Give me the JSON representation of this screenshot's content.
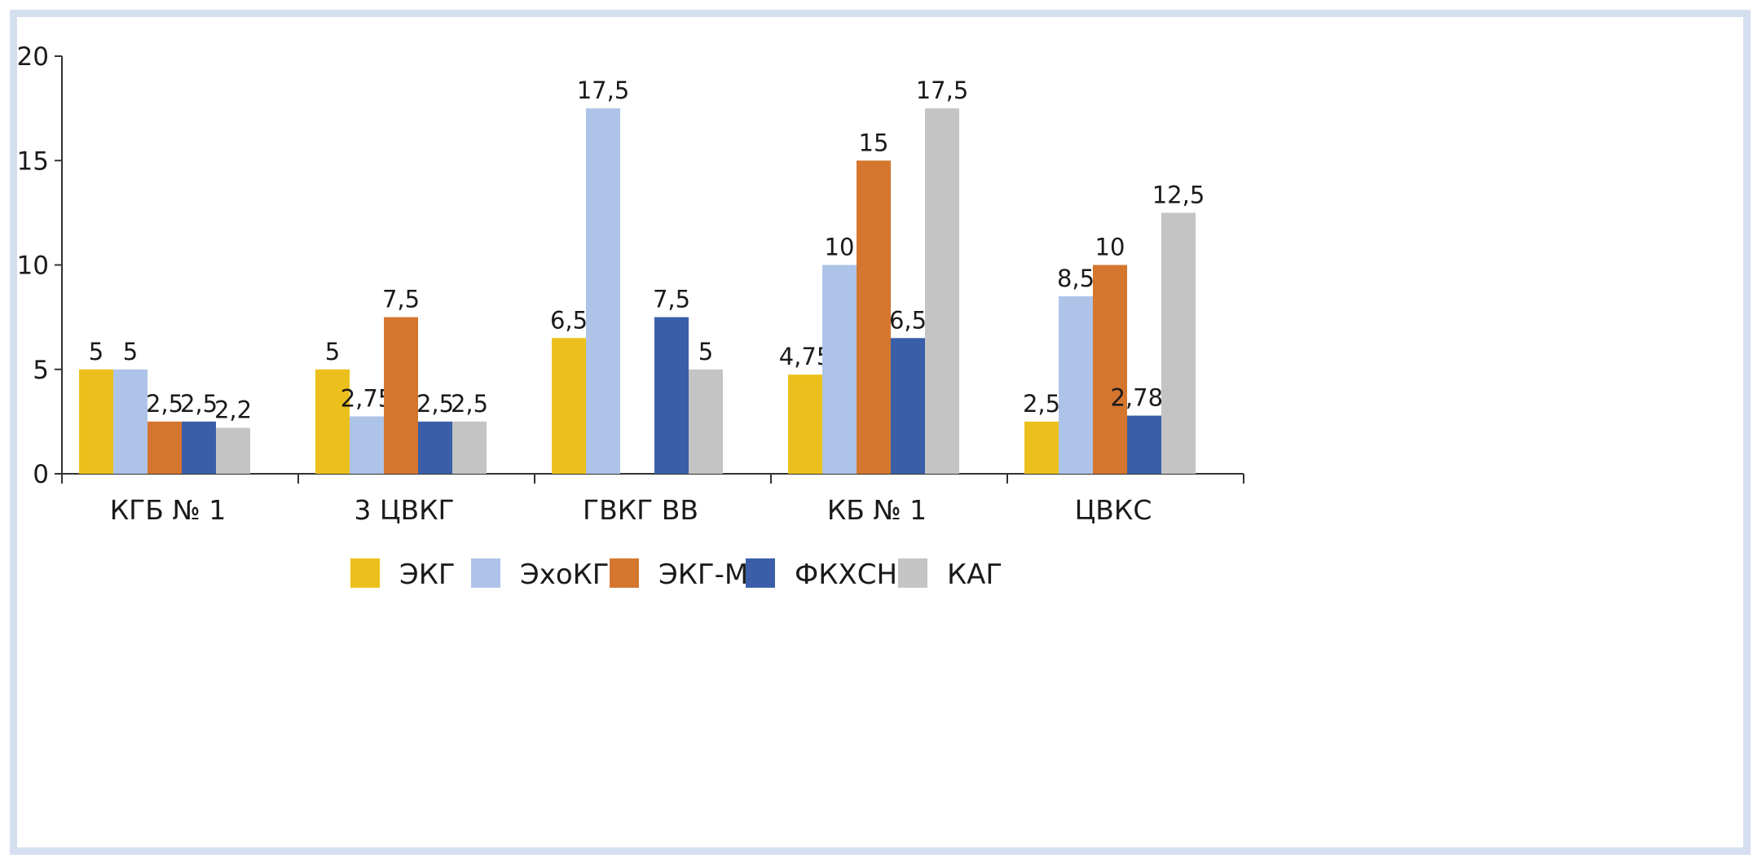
{
  "chart_data": {
    "type": "bar",
    "categories": [
      "КГБ № 1",
      "3 ЦВКГ",
      "ГВКГ ВВ",
      "КБ № 1",
      "ЦВКС"
    ],
    "series": [
      {
        "name": "ЭКГ",
        "color": "#ecc01c",
        "values": [
          5,
          5,
          6.5,
          4.75,
          2.5
        ],
        "labels": [
          "5",
          "5",
          "6,5",
          "4,75",
          "2,5"
        ]
      },
      {
        "name": "ЭхоКГ",
        "color": "#aec3e8",
        "values": [
          5,
          2.75,
          17.5,
          10,
          8.5
        ],
        "labels": [
          "5",
          "2,75",
          "17,5",
          "10",
          "8,5"
        ]
      },
      {
        "name": "ЭКГ-М",
        "color": "#d4762e",
        "values": [
          2.5,
          7.5,
          null,
          15,
          10
        ],
        "labels": [
          "2,5",
          "7,5",
          "",
          "15",
          "10"
        ]
      },
      {
        "name": "ФКХСН",
        "color": "#3a5fa8",
        "values": [
          2.5,
          2.5,
          7.5,
          6.5,
          2.785
        ],
        "labels": [
          "2,5",
          "2,5",
          "7,5",
          "6,5",
          "2,785"
        ]
      },
      {
        "name": "КАГ",
        "color": "#c4c4c4",
        "values": [
          2.2,
          2.5,
          5,
          17.5,
          12.5
        ],
        "labels": [
          "2,2",
          "2,5",
          "5",
          "17,5",
          "12,5"
        ]
      }
    ],
    "yticks": [
      "0",
      "5",
      "10",
      "15",
      "20"
    ],
    "ylim": [
      0,
      20
    ],
    "grid": false,
    "legend_position": "bottom"
  }
}
